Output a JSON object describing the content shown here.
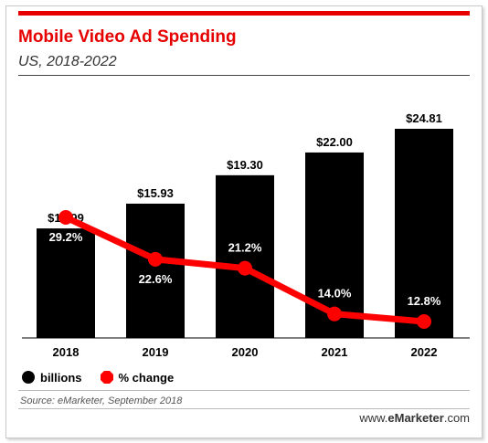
{
  "colors": {
    "accent": "#e60000",
    "bars": "#000000",
    "line": "#ff0000"
  },
  "header": {
    "title": "Mobile Video Ad Spending",
    "subtitle": "US, 2018-2022"
  },
  "legend": {
    "bars_label": "billions",
    "line_label": "% change"
  },
  "footer": {
    "source": "Source: eMarketer, September 2018",
    "brand_prefix": "www.",
    "brand_main": "eMarketer",
    "brand_suffix": ".com"
  },
  "chart_data": {
    "type": "bar",
    "title": "Mobile Video Ad Spending",
    "subtitle": "US, 2018-2022",
    "categories": [
      "2018",
      "2019",
      "2020",
      "2021",
      "2022"
    ],
    "series": [
      {
        "name": "billions",
        "type": "bar",
        "values": [
          12.99,
          15.93,
          19.3,
          22.0,
          24.81
        ],
        "labels": [
          "$12.99",
          "$15.93",
          "$19.30",
          "$22.00",
          "$24.81"
        ]
      },
      {
        "name": "% change",
        "type": "line",
        "values": [
          29.2,
          22.6,
          21.2,
          14.0,
          12.8
        ],
        "labels": [
          "29.2%",
          "22.6%",
          "21.2%",
          "14.0%",
          "12.8%"
        ]
      }
    ],
    "legend_position": "bottom-left",
    "grid": false
  }
}
